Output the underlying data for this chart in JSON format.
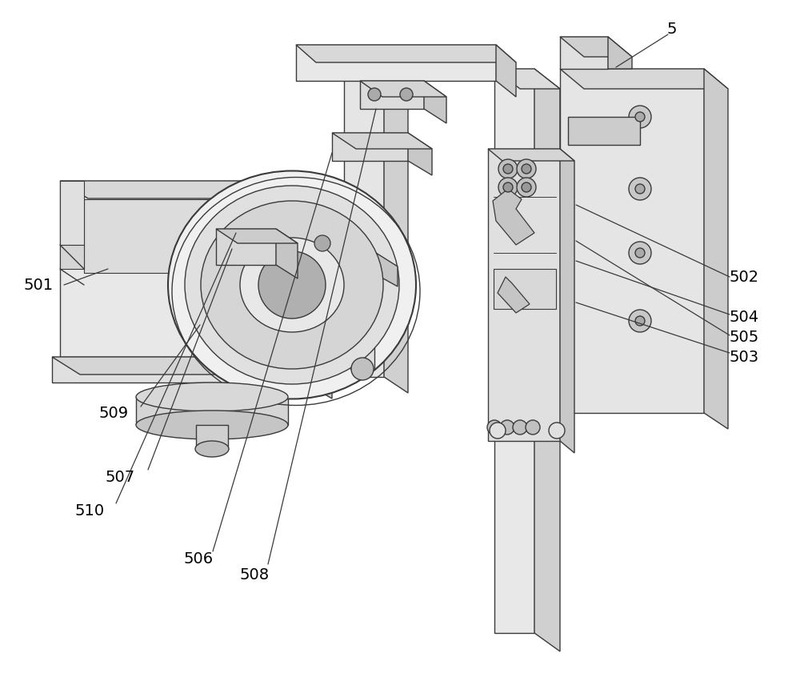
{
  "figsize": [
    10.0,
    8.46
  ],
  "bg_color": "white",
  "line_color": "#3a3a3a",
  "fill_light": "#f0f0f0",
  "fill_mid": "#d8d8d8",
  "fill_dark": "#c0c0c0",
  "label_fontsize": 14,
  "lw": 1.0
}
